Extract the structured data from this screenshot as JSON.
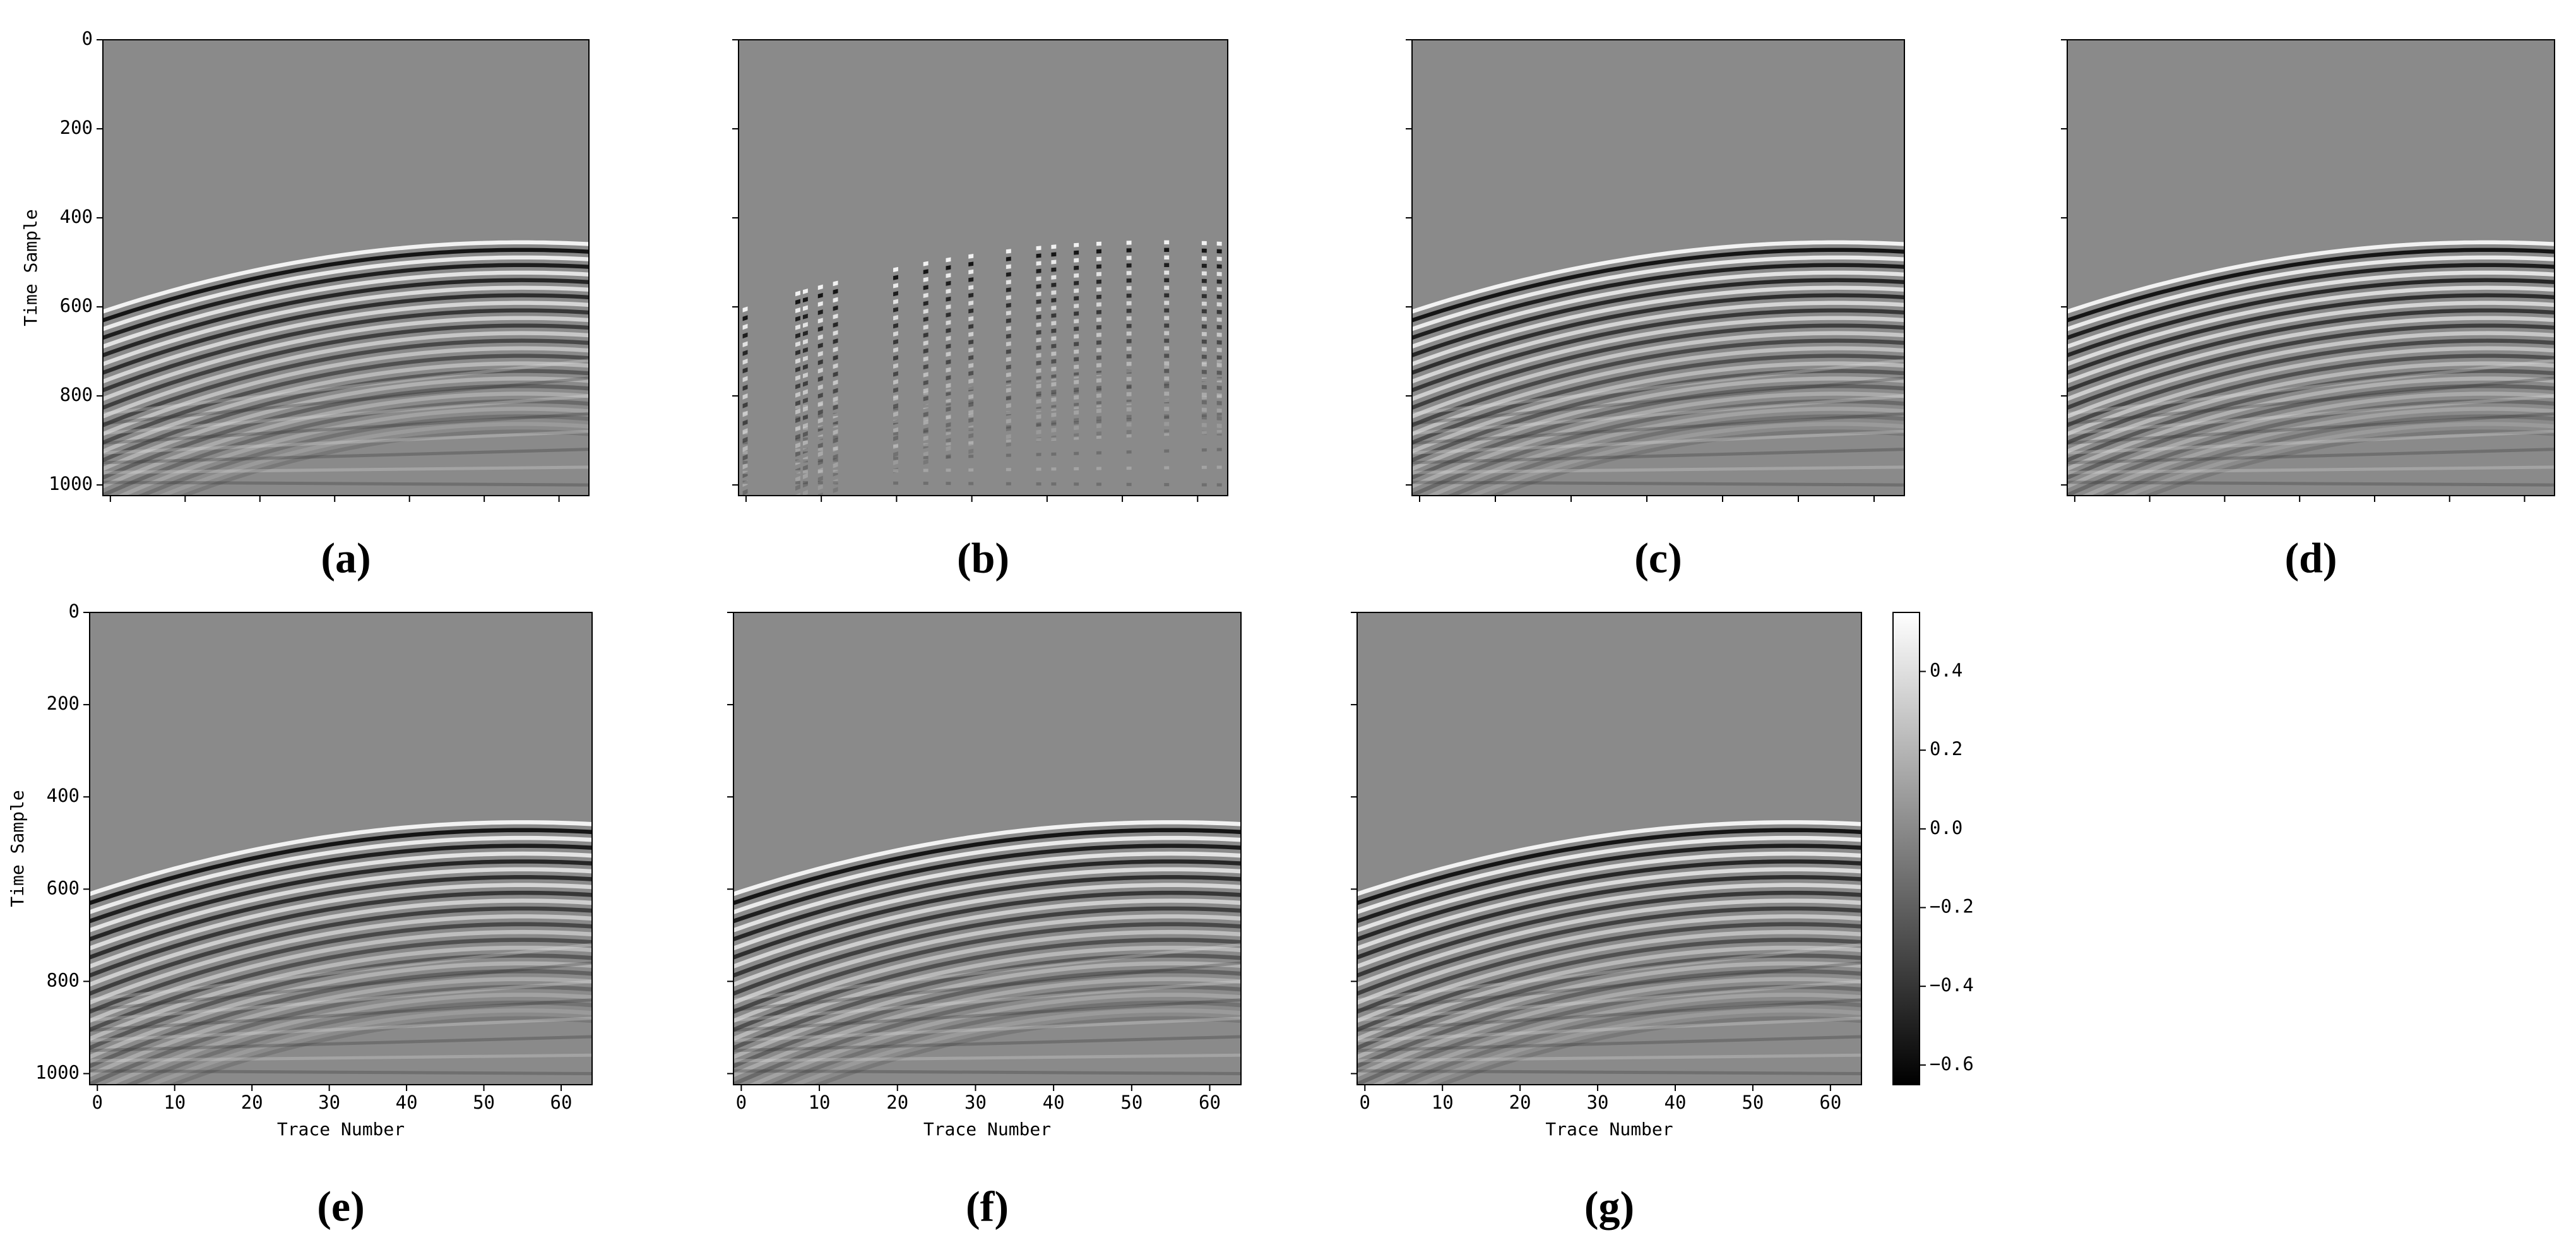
{
  "chart_data": [
    {
      "type": "heatmap",
      "label": "(a)",
      "ylabel": "Time Sample",
      "xlim": [
        -1,
        64
      ],
      "ylim": [
        1024,
        0
      ],
      "xticks": [
        0,
        10,
        20,
        30,
        40,
        50,
        60
      ],
      "yticks": [
        0,
        200,
        400,
        600,
        800,
        1000
      ],
      "xtick_labels": false,
      "ytick_labels": true
    },
    {
      "type": "heatmap",
      "label": "(b)",
      "xlim": [
        -1,
        64
      ],
      "ylim": [
        1024,
        0
      ],
      "xticks": [
        0,
        10,
        20,
        30,
        40,
        50,
        60
      ],
      "yticks": [
        0,
        200,
        400,
        600,
        800,
        1000
      ],
      "xtick_labels": false,
      "ytick_labels": false
    },
    {
      "type": "heatmap",
      "label": "(c)",
      "xlim": [
        -1,
        64
      ],
      "ylim": [
        1024,
        0
      ],
      "xticks": [
        0,
        10,
        20,
        30,
        40,
        50,
        60
      ],
      "yticks": [
        0,
        200,
        400,
        600,
        800,
        1000
      ],
      "xtick_labels": false,
      "ytick_labels": false
    },
    {
      "type": "heatmap",
      "label": "(d)",
      "xlim": [
        -1,
        64
      ],
      "ylim": [
        1024,
        0
      ],
      "xticks": [
        0,
        10,
        20,
        30,
        40,
        50,
        60
      ],
      "yticks": [
        0,
        200,
        400,
        600,
        800,
        1000
      ],
      "xtick_labels": false,
      "ytick_labels": false
    },
    {
      "type": "heatmap",
      "label": "(e)",
      "ylabel": "Time Sample",
      "xlabel": "Trace Number",
      "xlim": [
        -1,
        64
      ],
      "ylim": [
        1024,
        0
      ],
      "xticks": [
        0,
        10,
        20,
        30,
        40,
        50,
        60
      ],
      "yticks": [
        0,
        200,
        400,
        600,
        800,
        1000
      ],
      "xtick_labels": true,
      "ytick_labels": true
    },
    {
      "type": "heatmap",
      "label": "(f)",
      "xlabel": "Trace Number",
      "xlim": [
        -1,
        64
      ],
      "ylim": [
        1024,
        0
      ],
      "xticks": [
        0,
        10,
        20,
        30,
        40,
        50,
        60
      ],
      "yticks": [
        0,
        200,
        400,
        600,
        800,
        1000
      ],
      "xtick_labels": true,
      "ytick_labels": false
    },
    {
      "type": "heatmap",
      "label": "(g)",
      "xlabel": "Trace Number",
      "xlim": [
        -1,
        64
      ],
      "ylim": [
        1024,
        0
      ],
      "xticks": [
        0,
        10,
        20,
        30,
        40,
        50,
        60
      ],
      "yticks": [
        0,
        200,
        400,
        600,
        800,
        1000
      ],
      "xtick_labels": true,
      "ytick_labels": false
    },
    {
      "type": "colorbar",
      "ylim": [
        -0.65,
        0.55
      ],
      "yticks": [
        {
          "value": 0.4,
          "label": "0.4"
        },
        {
          "value": 0.2,
          "label": "0.2"
        },
        {
          "value": 0,
          "label": "0.0"
        },
        {
          "value": -0.2,
          "label": "−0.2"
        },
        {
          "value": -0.4,
          "label": "−0.4"
        },
        {
          "value": -0.6,
          "label": "−0.6"
        }
      ]
    }
  ]
}
